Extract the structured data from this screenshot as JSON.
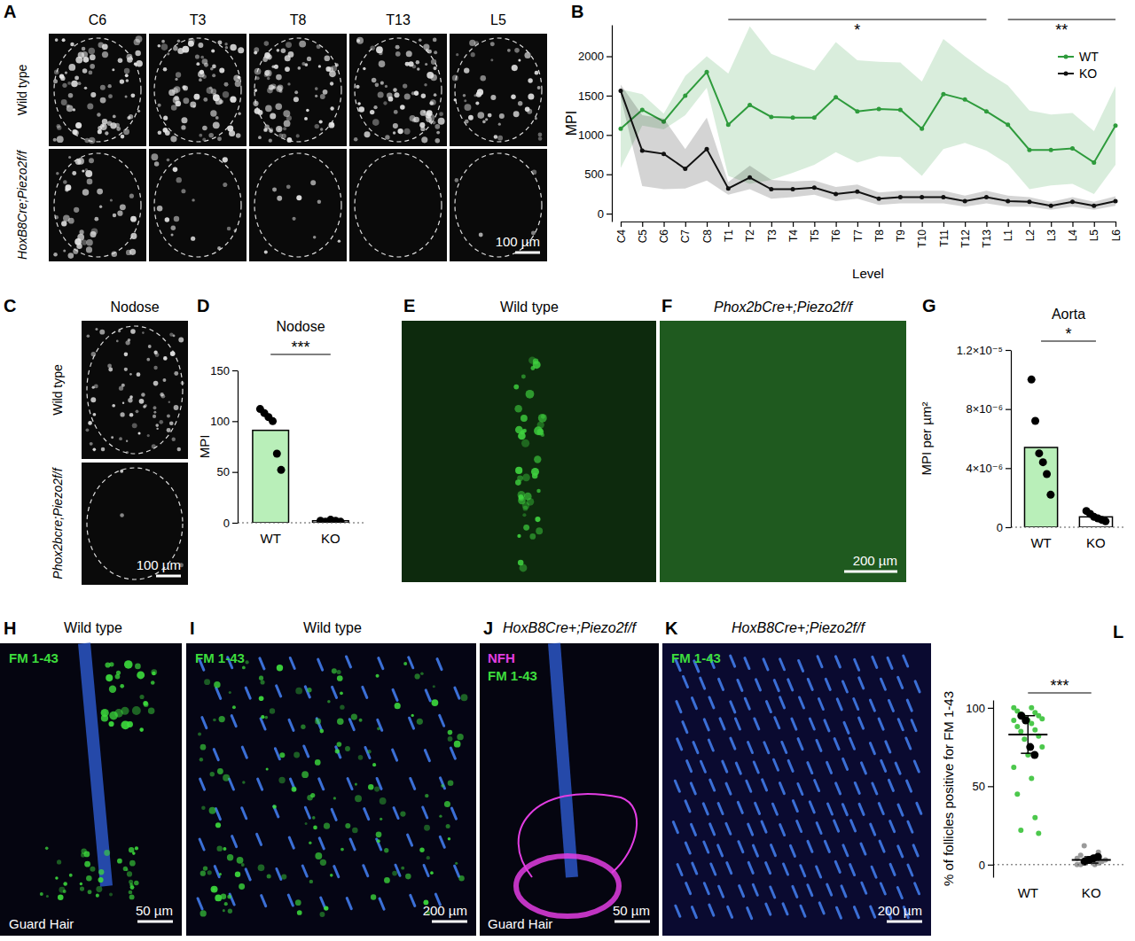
{
  "panels": [
    {
      "letter": "A",
      "columns": [
        "C6",
        "T3",
        "T8",
        "T13",
        "L5"
      ],
      "rows": [
        "Wild type",
        "HoxB8Cre;Piezo2f/f"
      ],
      "scale_bar": "100 µm"
    },
    {
      "letter": "C",
      "title": "Nodose",
      "rows": [
        "Wild type",
        "Phox2bcre;Piezo2f/f"
      ],
      "scale_bar": "100 µm"
    },
    {
      "letter": "E",
      "title": "Wild type"
    },
    {
      "letter": "F",
      "title": "Phox2bCre+;Piezo2f/f",
      "scale_bar": "200 µm"
    },
    {
      "letter": "H",
      "title": "Wild type",
      "stains": [
        {
          "text": "FM 1-43",
          "color": "#3ddc3d"
        }
      ],
      "caption": "Guard Hair",
      "scale_bar": "50 µm"
    },
    {
      "letter": "I",
      "title": "Wild type",
      "stains": [
        {
          "text": "FM 1-43",
          "color": "#3ddc3d"
        }
      ],
      "scale_bar": "200 µm"
    },
    {
      "letter": "J",
      "title": "HoxB8Cre+;Piezo2f/f",
      "stains": [
        {
          "text": "NFH",
          "color": "#e23de2"
        },
        {
          "text": "FM 1-43",
          "color": "#3ddc3d"
        }
      ],
      "caption": "Guard Hair",
      "scale_bar": "50 µm"
    },
    {
      "letter": "K",
      "title": "HoxB8Cre+;Piezo2f/f",
      "stains": [
        {
          "text": "FM 1-43",
          "color": "#3ddc3d"
        }
      ],
      "scale_bar": "200 µm"
    }
  ],
  "chart_data": [
    {
      "type": "line",
      "panel_label": "B",
      "ylabel": "MPI",
      "xlabel": "Level",
      "categories": [
        "C4",
        "C5",
        "C6",
        "C7",
        "C8",
        "T1",
        "T2",
        "T3",
        "T4",
        "T5",
        "T6",
        "T7",
        "T8",
        "T9",
        "T10",
        "T11",
        "T12",
        "T13",
        "L1",
        "L2",
        "L3",
        "L4",
        "L5",
        "L6"
      ],
      "series": [
        {
          "name": "WT",
          "color": "#2e9b3c",
          "values": [
            1080,
            1320,
            1170,
            1500,
            1800,
            1130,
            1380,
            1230,
            1220,
            1220,
            1480,
            1300,
            1330,
            1320,
            1080,
            1520,
            1450,
            1300,
            1130,
            810,
            810,
            830,
            650,
            1120
          ],
          "errors": [
            500,
            200,
            100,
            250,
            200,
            650,
            1000,
            800,
            700,
            600,
            700,
            650,
            600,
            600,
            600,
            700,
            550,
            500,
            500,
            500,
            450,
            450,
            400,
            500
          ]
        },
        {
          "name": "KO",
          "color": "#111111",
          "values": [
            1560,
            800,
            760,
            570,
            820,
            320,
            460,
            310,
            310,
            330,
            250,
            280,
            190,
            210,
            210,
            210,
            160,
            210,
            160,
            150,
            100,
            150,
            100,
            160
          ],
          "errors": [
            80,
            450,
            450,
            250,
            400,
            80,
            150,
            120,
            100,
            90,
            90,
            90,
            80,
            80,
            80,
            80,
            70,
            80,
            70,
            60,
            50,
            60,
            50,
            60
          ]
        }
      ],
      "ylim": [
        -100,
        2400
      ],
      "yticks": [
        0,
        500,
        1000,
        1500,
        2000
      ],
      "legend": "top-right",
      "marker": "circle",
      "annotations": [
        {
          "text": "*",
          "from": "T1",
          "to": "T13"
        },
        {
          "text": "**",
          "from": "L1",
          "to": "L6"
        }
      ]
    },
    {
      "type": "bar",
      "panel_label": "D",
      "title": "Nodose",
      "ylabel": "MPI",
      "categories": [
        "WT",
        "KO"
      ],
      "values": [
        91,
        2
      ],
      "colors": [
        "#b9efb9",
        "#ffffff"
      ],
      "points": [
        [
          112,
          108,
          104,
          100,
          68,
          52
        ],
        [
          2,
          1,
          3,
          2,
          1
        ]
      ],
      "ylim": [
        0,
        150
      ],
      "yticks": [
        0,
        50,
        100,
        150
      ],
      "annotations": [
        {
          "text": "***",
          "from": "WT",
          "to": "KO"
        }
      ]
    },
    {
      "type": "bar",
      "panel_label": "G",
      "title": "Aorta",
      "ylabel": "MPI per µm²",
      "categories": [
        "WT",
        "KO"
      ],
      "values": [
        5.4e-06,
        7e-07
      ],
      "colors": [
        "#b9efb9",
        "#ffffff"
      ],
      "points": [
        [
          1e-05,
          7.2e-06,
          5e-06,
          4.4e-06,
          3.6e-06,
          2.2e-06
        ],
        [
          1.1e-06,
          9e-07,
          7e-07,
          6e-07,
          5e-07,
          4e-07
        ]
      ],
      "ylim": [
        0,
        1.2e-05
      ],
      "yticks": [
        0,
        {
          "value": 4e-06,
          "label": "4×10⁻⁶"
        },
        {
          "value": 8e-06,
          "label": "8×10⁻⁶"
        },
        {
          "value": 1.2e-05,
          "label": "1.2×10⁻⁵"
        }
      ],
      "annotations": [
        {
          "text": "*",
          "from": "WT",
          "to": "KO"
        }
      ]
    },
    {
      "type": "dot",
      "panel_label": "L",
      "ylabel": "% of follicles positive for FM 1-43",
      "categories": [
        "WT",
        "KO"
      ],
      "values": [
        83,
        3
      ],
      "errors": [
        12,
        2
      ],
      "colors": [
        "#4cc84c",
        "#9a9a9a"
      ],
      "points": [
        [
          100,
          100,
          98,
          97,
          96,
          95,
          94,
          93,
          92,
          92,
          90,
          88,
          86,
          85,
          82,
          80,
          75,
          70,
          62,
          55,
          45,
          30,
          22,
          20
        ],
        [
          0,
          0,
          0,
          1,
          1,
          2,
          2,
          3,
          3,
          4,
          5,
          6,
          8,
          12
        ]
      ],
      "group_points": [
        [
          95,
          92,
          75,
          70
        ],
        [
          2,
          3,
          4,
          5
        ]
      ],
      "ylim": [
        -8,
        105
      ],
      "yticks": [
        0,
        50,
        100
      ],
      "annotations": [
        {
          "text": "***",
          "from": "WT",
          "to": "KO"
        }
      ]
    }
  ]
}
